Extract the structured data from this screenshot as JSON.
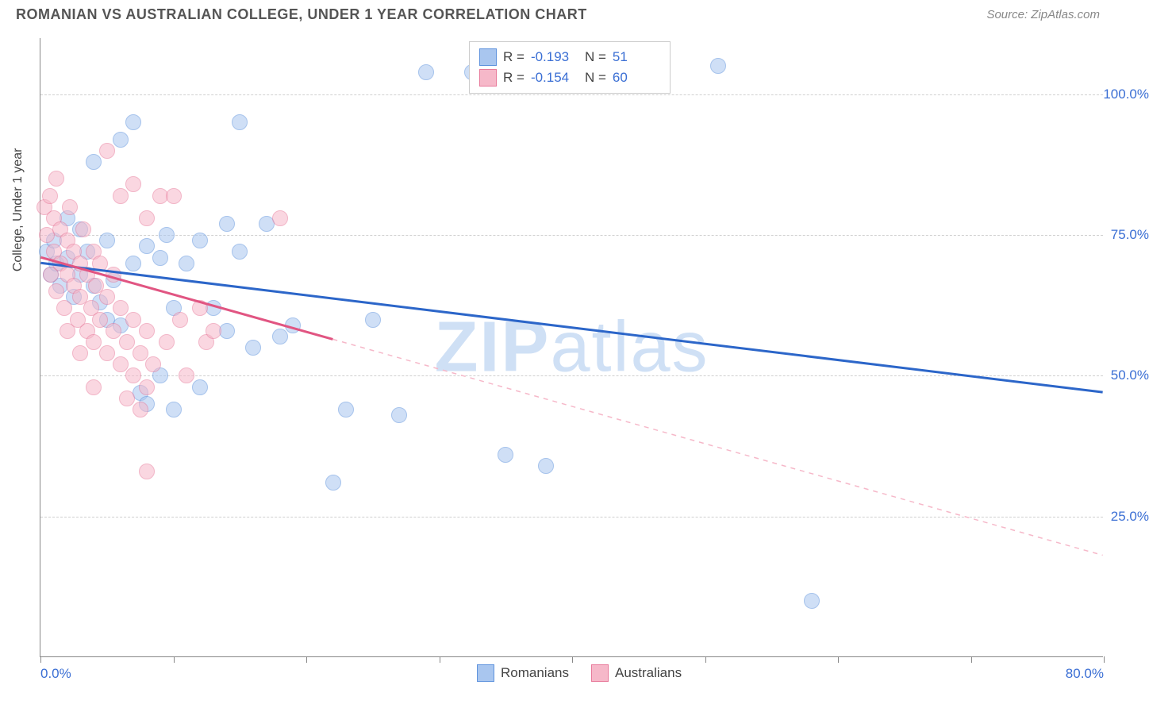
{
  "header": {
    "title": "ROMANIAN VS AUSTRALIAN COLLEGE, UNDER 1 YEAR CORRELATION CHART",
    "source": "Source: ZipAtlas.com"
  },
  "watermark": {
    "part1": "ZIP",
    "part2": "atlas"
  },
  "chart": {
    "type": "scatter",
    "xlim": [
      0,
      80
    ],
    "ylim": [
      0,
      110
    ],
    "ylabel": "College, Under 1 year",
    "background": "#ffffff",
    "grid_color": "#d0d0d0",
    "axis_color": "#888888",
    "yticks": [
      {
        "v": 25,
        "label": "25.0%"
      },
      {
        "v": 50,
        "label": "50.0%"
      },
      {
        "v": 75,
        "label": "75.0%"
      },
      {
        "v": 100,
        "label": "100.0%"
      }
    ],
    "xticks": [
      0,
      10,
      20,
      30,
      40,
      50,
      60,
      70,
      80
    ],
    "xtick_labels": [
      {
        "v": 0,
        "label": "0.0%"
      },
      {
        "v": 80,
        "label": "80.0%"
      }
    ],
    "marker_radius": 10,
    "series": [
      {
        "name": "Romanians",
        "fill": "#a9c6ef",
        "stroke": "#5f93dd",
        "line_color": "#2c66c9",
        "line_width": 3,
        "dash_color": "#a9c6ef",
        "R_label": "R =",
        "R_value": "-0.193",
        "N_label": "N =",
        "N_value": "51",
        "regression": {
          "x1": 0,
          "y1": 70,
          "x2": 80,
          "y2": 47,
          "solid_until_x": 80
        },
        "points": [
          [
            0.5,
            72
          ],
          [
            0.8,
            68
          ],
          [
            1,
            74
          ],
          [
            1.2,
            70
          ],
          [
            1.5,
            66
          ],
          [
            2,
            78
          ],
          [
            2,
            71
          ],
          [
            2.5,
            64
          ],
          [
            3,
            76
          ],
          [
            3,
            68
          ],
          [
            3.5,
            72
          ],
          [
            4,
            88
          ],
          [
            4,
            66
          ],
          [
            4.5,
            63
          ],
          [
            5,
            74
          ],
          [
            5,
            60
          ],
          [
            5.5,
            67
          ],
          [
            6,
            92
          ],
          [
            6,
            59
          ],
          [
            7,
            95
          ],
          [
            7,
            70
          ],
          [
            7.5,
            47
          ],
          [
            8,
            73
          ],
          [
            8,
            45
          ],
          [
            9,
            71
          ],
          [
            9,
            50
          ],
          [
            9.5,
            75
          ],
          [
            10,
            44
          ],
          [
            10,
            62
          ],
          [
            11,
            70
          ],
          [
            12,
            74
          ],
          [
            12,
            48
          ],
          [
            13,
            62
          ],
          [
            14,
            77
          ],
          [
            14,
            58
          ],
          [
            15,
            72
          ],
          [
            15,
            95
          ],
          [
            16,
            55
          ],
          [
            17,
            77
          ],
          [
            18,
            57
          ],
          [
            19,
            59
          ],
          [
            22,
            31
          ],
          [
            23,
            44
          ],
          [
            25,
            60
          ],
          [
            27,
            43
          ],
          [
            29,
            104
          ],
          [
            32.5,
            104
          ],
          [
            35,
            36
          ],
          [
            38,
            34
          ],
          [
            51,
            105
          ],
          [
            58,
            10
          ]
        ]
      },
      {
        "name": "Australians",
        "fill": "#f6b8c9",
        "stroke": "#e87a9b",
        "line_color": "#e15582",
        "line_width": 3,
        "dash_color": "#f6b8c9",
        "R_label": "R =",
        "R_value": "-0.154",
        "N_label": "N =",
        "N_value": "60",
        "regression": {
          "x1": 0,
          "y1": 71,
          "x2": 80,
          "y2": 18,
          "solid_until_x": 22
        },
        "points": [
          [
            0.3,
            80
          ],
          [
            0.5,
            75
          ],
          [
            0.7,
            82
          ],
          [
            0.8,
            68
          ],
          [
            1,
            72
          ],
          [
            1,
            78
          ],
          [
            1.2,
            85
          ],
          [
            1.2,
            65
          ],
          [
            1.5,
            70
          ],
          [
            1.5,
            76
          ],
          [
            1.8,
            62
          ],
          [
            2,
            68
          ],
          [
            2,
            74
          ],
          [
            2,
            58
          ],
          [
            2.2,
            80
          ],
          [
            2.5,
            66
          ],
          [
            2.5,
            72
          ],
          [
            2.8,
            60
          ],
          [
            3,
            64
          ],
          [
            3,
            70
          ],
          [
            3,
            54
          ],
          [
            3.2,
            76
          ],
          [
            3.5,
            68
          ],
          [
            3.5,
            58
          ],
          [
            3.8,
            62
          ],
          [
            4,
            72
          ],
          [
            4,
            56
          ],
          [
            4,
            48
          ],
          [
            4.2,
            66
          ],
          [
            4.5,
            60
          ],
          [
            4.5,
            70
          ],
          [
            5,
            54
          ],
          [
            5,
            64
          ],
          [
            5,
            90
          ],
          [
            5.5,
            58
          ],
          [
            5.5,
            68
          ],
          [
            6,
            52
          ],
          [
            6,
            62
          ],
          [
            6,
            82
          ],
          [
            6.5,
            56
          ],
          [
            6.5,
            46
          ],
          [
            7,
            60
          ],
          [
            7,
            50
          ],
          [
            7,
            84
          ],
          [
            7.5,
            54
          ],
          [
            7.5,
            44
          ],
          [
            8,
            58
          ],
          [
            8,
            48
          ],
          [
            8,
            78
          ],
          [
            8.5,
            52
          ],
          [
            9,
            82
          ],
          [
            9.5,
            56
          ],
          [
            10,
            82
          ],
          [
            10.5,
            60
          ],
          [
            11,
            50
          ],
          [
            12,
            62
          ],
          [
            12.5,
            56
          ],
          [
            13,
            58
          ],
          [
            8,
            33
          ],
          [
            18,
            78
          ]
        ]
      }
    ]
  },
  "legend": {
    "series1_label": "Romanians",
    "series2_label": "Australians"
  }
}
